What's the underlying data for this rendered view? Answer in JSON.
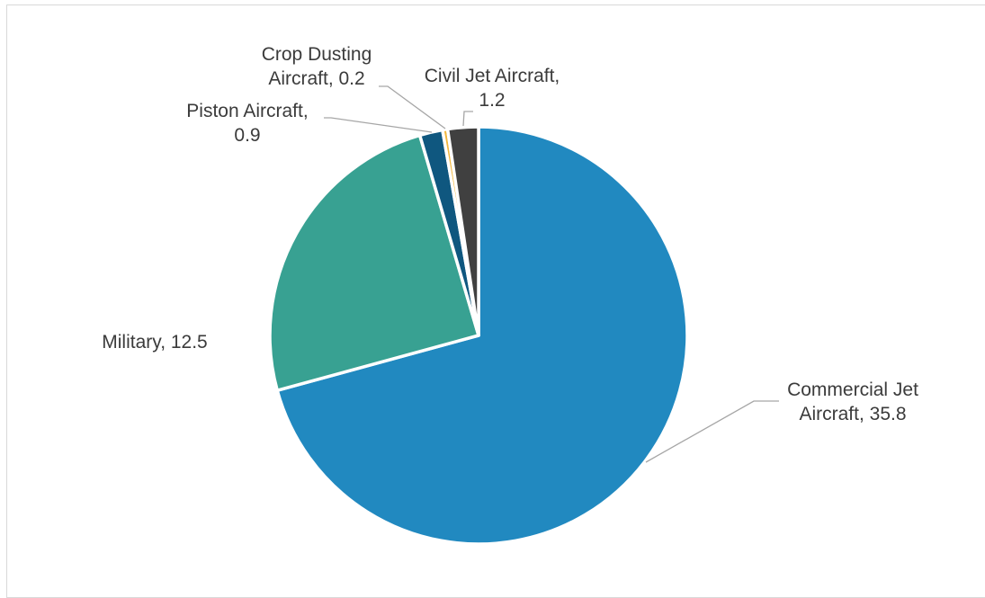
{
  "chart_data": {
    "type": "pie",
    "slices": [
      {
        "label": "Commercial Jet Aircraft",
        "value": 35.8,
        "color": "#2189c0",
        "text_lines": [
          "Commercial Jet",
          "Aircraft,  35.8"
        ]
      },
      {
        "label": "Military",
        "value": 12.5,
        "color": "#38a192",
        "text_lines": [
          "Military,  12.5"
        ]
      },
      {
        "label": "Piston Aircraft",
        "value": 0.9,
        "color": "#0f577f",
        "text_lines": [
          "Piston Aircraft,",
          "0.9"
        ]
      },
      {
        "label": "Crop Dusting Aircraft",
        "value": 0.2,
        "color": "#f1b73e",
        "text_lines": [
          "Crop Dusting",
          "Aircraft,  0.2"
        ]
      },
      {
        "label": "Civil Jet Aircraft",
        "value": 1.2,
        "color": "#404040",
        "text_lines": [
          "Civil Jet Aircraft,",
          "1.2"
        ]
      }
    ],
    "title": "",
    "legend": "none",
    "start_angle": "12 o'clock",
    "direction": "clockwise"
  }
}
